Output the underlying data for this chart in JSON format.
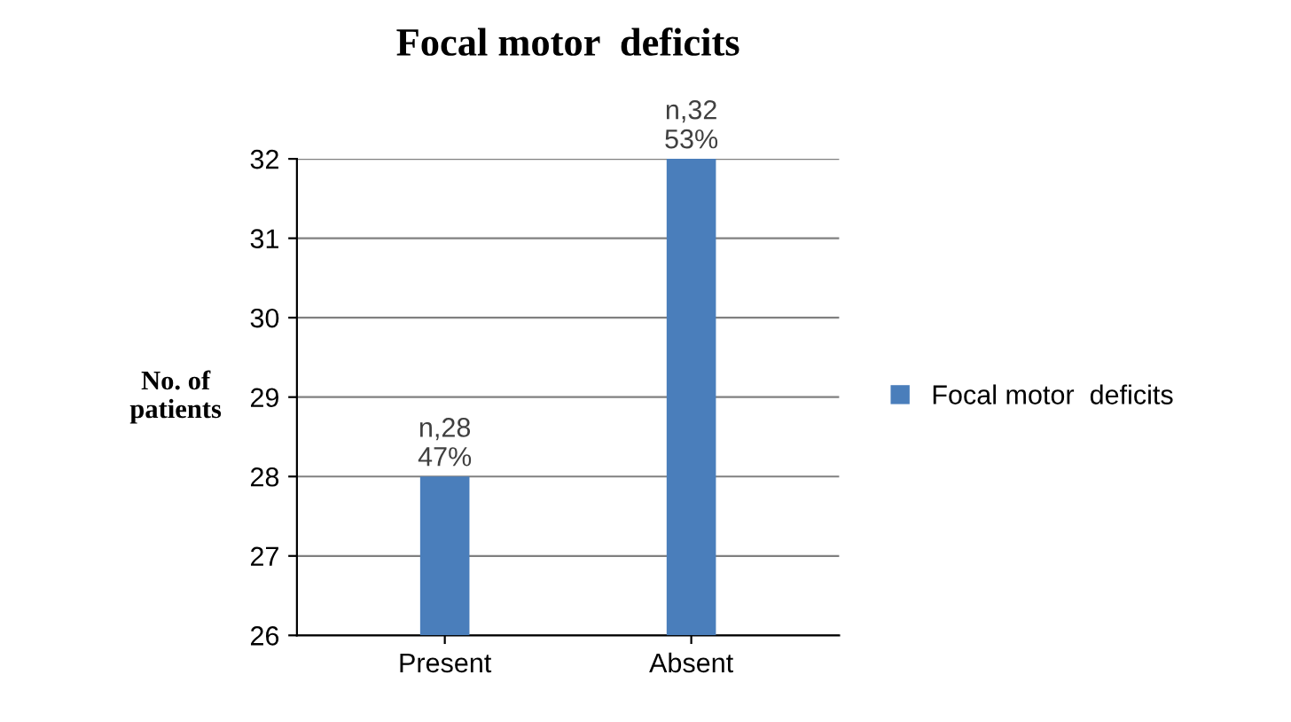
{
  "chart_data": {
    "type": "bar",
    "title": "Focal motor  deficits",
    "ylabel": "No. of\npatients",
    "categories": [
      "Present",
      "Absent"
    ],
    "series": [
      {
        "name": "Focal motor  deficits",
        "color": "#4a7ebb",
        "values": [
          28,
          32
        ],
        "value_labels": [
          "n,28\n47%",
          "n,32\n53%"
        ]
      }
    ],
    "ylim": [
      26,
      32
    ],
    "yticks": [
      26,
      27,
      28,
      29,
      30,
      31,
      32
    ],
    "grid": "y",
    "legend": "right"
  }
}
